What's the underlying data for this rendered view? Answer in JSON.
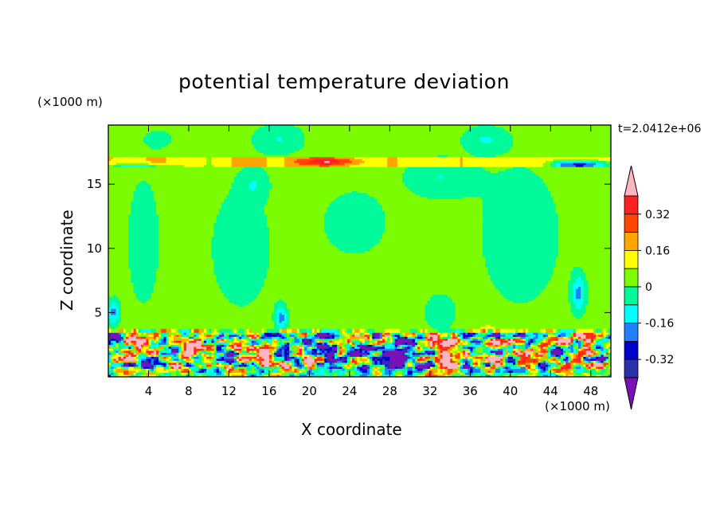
{
  "chart_data": {
    "type": "heatmap",
    "title": "potential temperature deviation",
    "xlabel": "X coordinate",
    "ylabel": "Z coordinate",
    "x_unit_label": "(×1000 m)",
    "y_unit_label": "(×1000 m)",
    "time_label": "t=2.0412e+06",
    "xlim": [
      0,
      50
    ],
    "ylim": [
      0,
      19.6
    ],
    "x_ticks": [
      4,
      8,
      12,
      16,
      20,
      24,
      28,
      32,
      36,
      40,
      44,
      48
    ],
    "y_ticks": [
      5,
      10,
      15
    ],
    "colorbar": {
      "levels": [
        -0.4,
        -0.32,
        -0.24,
        -0.16,
        -0.08,
        0,
        0.08,
        0.16,
        0.24,
        0.32,
        0.4
      ],
      "labels": [
        "0.32",
        "0.16",
        "0",
        "-0.16",
        "-0.32"
      ],
      "colors": [
        "#7a10b8",
        "#2a30a8",
        "#0000cd",
        "#1f7fff",
        "#00ffff",
        "#00fa9a",
        "#7cfc00",
        "#ffff00",
        "#ffa500",
        "#ff4500",
        "#ff2020",
        "#ffb6c1"
      ],
      "extend": "both"
    },
    "features": {
      "boundary_layer_top": 3.5,
      "inversion_layer": [
        16.5,
        17.0
      ],
      "background_value": 0.04
    }
  }
}
